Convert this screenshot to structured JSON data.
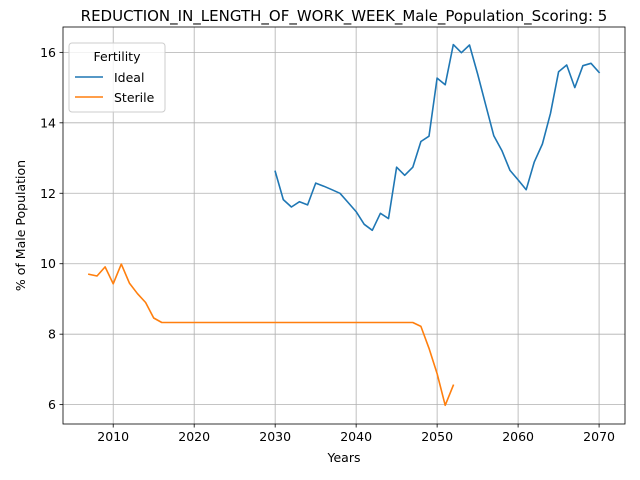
{
  "chart_data": {
    "type": "line",
    "title": "REDUCTION_IN_LENGTH_OF_WORK_WEEK_Male_Population_Scoring: 5",
    "xlabel": "Years",
    "ylabel": "% of Male Population",
    "xlim": [
      2003.8,
      2073.2
    ],
    "ylim": [
      5.45,
      16.72
    ],
    "x_ticks": [
      2010,
      2020,
      2030,
      2040,
      2050,
      2060,
      2070
    ],
    "y_ticks": [
      6,
      8,
      10,
      12,
      14,
      16
    ],
    "grid": true,
    "legend": {
      "title": "Fertility",
      "placement": "upper left"
    },
    "series": [
      {
        "name": "Ideal",
        "color": "#1f77b4",
        "x": [
          2030,
          2031,
          2032,
          2033,
          2034,
          2035,
          2036,
          2037,
          2038,
          2039,
          2040,
          2041,
          2042,
          2043,
          2044,
          2045,
          2046,
          2047,
          2048,
          2049,
          2050,
          2051,
          2052,
          2053,
          2054,
          2055,
          2056,
          2057,
          2058,
          2059,
          2060,
          2061,
          2062,
          2063,
          2064,
          2065,
          2066,
          2067,
          2068,
          2069,
          2070
        ],
        "values": [
          12.62,
          11.82,
          11.61,
          11.76,
          11.67,
          12.29,
          12.2,
          12.1,
          12.0,
          11.74,
          11.48,
          11.12,
          10.95,
          11.43,
          11.28,
          12.74,
          12.51,
          12.74,
          13.47,
          13.62,
          15.27,
          15.08,
          16.22,
          15.99,
          16.21,
          15.39,
          14.51,
          13.63,
          13.21,
          12.65,
          12.38,
          12.1,
          12.89,
          13.4,
          14.27,
          15.45,
          15.64,
          15.0,
          15.62,
          15.69,
          15.43
        ]
      },
      {
        "name": "Sterile",
        "color": "#ff7f0e",
        "x": [
          2007,
          2008,
          2009,
          2010,
          2011,
          2012,
          2013,
          2014,
          2015,
          2016,
          2017,
          2018,
          2019,
          2020,
          2021,
          2022,
          2023,
          2024,
          2025,
          2026,
          2027,
          2028,
          2029,
          2030,
          2031,
          2032,
          2033,
          2034,
          2035,
          2036,
          2037,
          2038,
          2039,
          2040,
          2041,
          2042,
          2043,
          2044,
          2045,
          2046,
          2047,
          2048,
          2049,
          2050,
          2051,
          2052
        ],
        "values": [
          9.7,
          9.65,
          9.91,
          9.43,
          9.99,
          9.45,
          9.15,
          8.9,
          8.46,
          8.33,
          8.33,
          8.33,
          8.33,
          8.33,
          8.33,
          8.33,
          8.33,
          8.33,
          8.33,
          8.33,
          8.33,
          8.33,
          8.33,
          8.33,
          8.33,
          8.33,
          8.33,
          8.33,
          8.33,
          8.33,
          8.33,
          8.33,
          8.33,
          8.33,
          8.33,
          8.33,
          8.33,
          8.33,
          8.33,
          8.33,
          8.33,
          8.22,
          7.6,
          6.88,
          5.98,
          6.55
        ]
      }
    ]
  }
}
